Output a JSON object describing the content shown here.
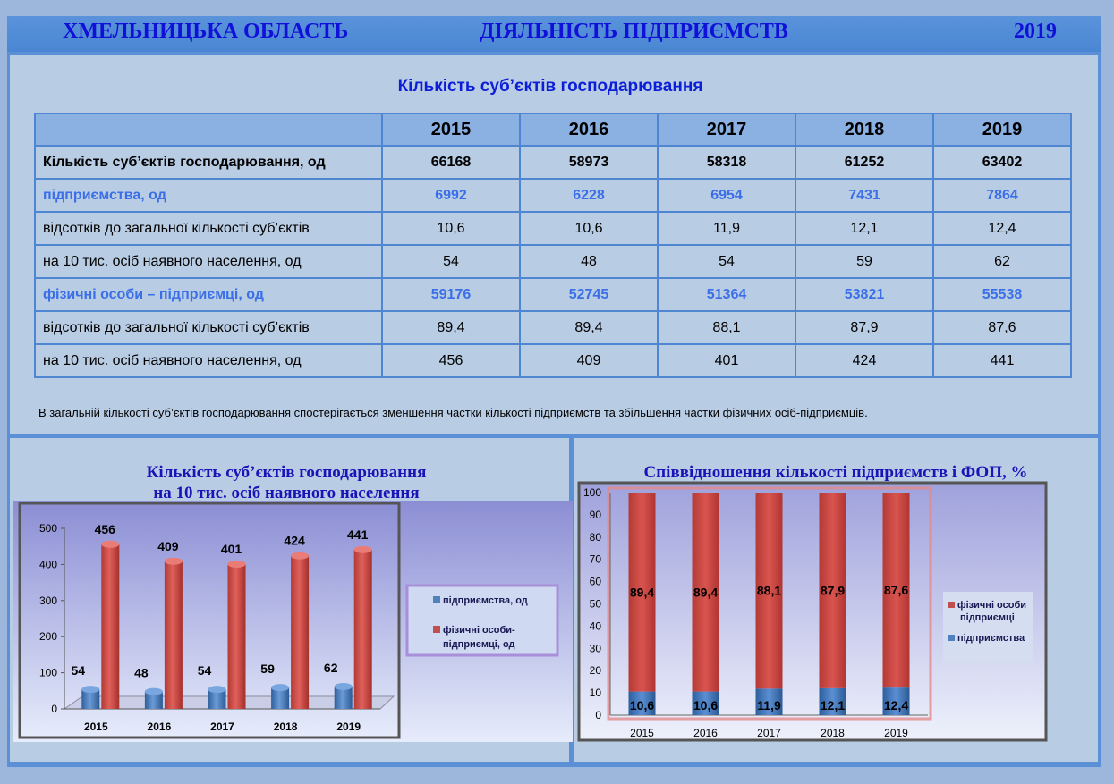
{
  "header": {
    "region": "ХМЕЛЬНИЦЬКА ОБЛАСТЬ",
    "topic": "ДІЯЛЬНІСТЬ ПІДПРИЄМСТВ",
    "year": "2019"
  },
  "table": {
    "title": "Кількість суб’єктів господарювання",
    "years": [
      "2015",
      "2016",
      "2017",
      "2018",
      "2019"
    ],
    "rows": [
      {
        "label": "Кількість суб’єктів господарювання, од",
        "values": [
          "66168",
          "58973",
          "58318",
          "61252",
          "63402"
        ]
      },
      {
        "label": "підприємства, од",
        "values": [
          "6992",
          "6228",
          "6954",
          "7431",
          "7864"
        ]
      },
      {
        "label": "відсотків до загальної кількості суб’єктів",
        "values": [
          "10,6",
          "10,6",
          "11,9",
          "12,1",
          "12,4"
        ]
      },
      {
        "label": "на 10 тис. осіб наявного населення, од",
        "values": [
          "54",
          "48",
          "54",
          "59",
          "62"
        ]
      },
      {
        "label": "фізичні особи – підприємці, од",
        "values": [
          "59176",
          "52745",
          "51364",
          "53821",
          "55538"
        ]
      },
      {
        "label": "відсотків до загальної кількості суб’єктів",
        "values": [
          "89,4",
          "89,4",
          "88,1",
          "87,9",
          "87,6"
        ]
      },
      {
        "label": "на 10 тис. осіб наявного населення, од",
        "values": [
          "456",
          "409",
          "401",
          "424",
          "441"
        ]
      }
    ],
    "note": "В загальній кількості суб’єктів господарювання спостерігається зменшення частки кількості підприємств та збільшення частки фізичних осіб-підприємців."
  },
  "colors": {
    "blue_series": "#4f81bd",
    "red_series": "#c0504d",
    "title_blue": "#1a14b8"
  },
  "chart_data": [
    {
      "type": "bar",
      "title_line1": "Кількість суб’єктів господарювання",
      "title_line2": "на 10 тис. осіб наявного населення",
      "categories": [
        "2015",
        "2016",
        "2017",
        "2018",
        "2019"
      ],
      "series": [
        {
          "name": "підприємства, од",
          "values": [
            54,
            48,
            54,
            59,
            62
          ]
        },
        {
          "name": "фізичні особи-підприємці, од",
          "values": [
            456,
            409,
            401,
            424,
            441
          ]
        }
      ],
      "legend_labels": [
        "підприємства, од",
        "фізичні особи-",
        "підприємці, од"
      ],
      "yticks": [
        "0",
        "100",
        "200",
        "300",
        "400",
        "500"
      ],
      "ylim": [
        0,
        500
      ],
      "legend": "right"
    },
    {
      "type": "bar",
      "stacked": true,
      "title": "Співвідношення кількості підприємств і ФОП, %",
      "categories": [
        "2015",
        "2016",
        "2017",
        "2018",
        "2019"
      ],
      "series": [
        {
          "name": "підприємства",
          "values": [
            10.6,
            10.6,
            11.9,
            12.1,
            12.4
          ],
          "labels": [
            "10,6",
            "10,6",
            "11,9",
            "12,1",
            "12,4"
          ]
        },
        {
          "name": "фізичні особи підприємці",
          "values": [
            89.4,
            89.4,
            88.1,
            87.9,
            87.6
          ],
          "labels": [
            "89,4",
            "89,4",
            "88,1",
            "87,9",
            "87,6"
          ]
        }
      ],
      "legend_labels": [
        "фізичні особи",
        "підприємці",
        "підприємства"
      ],
      "yticks": [
        "0",
        "10",
        "20",
        "30",
        "40",
        "50",
        "60",
        "70",
        "80",
        "90",
        "100"
      ],
      "ylim": [
        0,
        100
      ],
      "legend": "right"
    }
  ]
}
